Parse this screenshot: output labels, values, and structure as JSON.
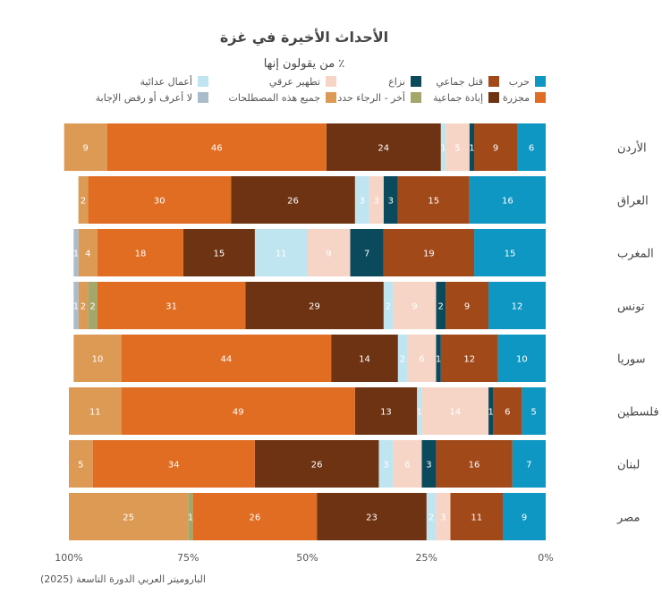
{
  "chart_data": {
    "type": "bar",
    "orientation": "horizontal-stacked-100",
    "direction": "rtl",
    "title": "الأحداث الأخيرة في غزة",
    "subtitle": "٪ من يقولون إنها",
    "source": "الباروميتر العربي الدورة التاسعة (2025)",
    "x_ticks": [
      {
        "value": 100,
        "label": "100%"
      },
      {
        "value": 75,
        "label": "75%"
      },
      {
        "value": 50,
        "label": "50%"
      },
      {
        "value": 25,
        "label": "25%"
      },
      {
        "value": 0,
        "label": "0%"
      }
    ],
    "categories": [
      "الأردن",
      "العراق",
      "المغرب",
      "تونس",
      "سوريا",
      "فلسطين",
      "لبنان",
      "مصر"
    ],
    "series": [
      {
        "key": "war",
        "name": "حرب",
        "color": "#0e97c3",
        "text_color": "#ffffff",
        "values": [
          6,
          16,
          15,
          12,
          10,
          5,
          7,
          9
        ]
      },
      {
        "key": "massacre",
        "name": "قتل جماعي",
        "color": "#a2491a",
        "text_color": "#ffffff",
        "values": [
          9,
          15,
          19,
          9,
          12,
          6,
          16,
          11
        ]
      },
      {
        "key": "conflict",
        "name": "نزاع",
        "color": "#0a4a5c",
        "text_color": "#ffffff",
        "values": [
          1,
          3,
          7,
          2,
          1,
          1,
          3,
          0
        ]
      },
      {
        "key": "ethnic",
        "name": "تطهير عرقي",
        "color": "#f7d5c6",
        "text_color": "#ffffff",
        "values": [
          5,
          3,
          9,
          9,
          6,
          14,
          6,
          3
        ]
      },
      {
        "key": "justice",
        "name": "أعمال عدائية",
        "color": "#bfe5f1",
        "text_color": "#ffffff",
        "values": [
          1,
          3,
          11,
          2,
          2,
          1,
          3,
          2
        ]
      },
      {
        "key": "genocide",
        "name": "إبادة جماعية",
        "color": "#6e3312",
        "text_color": "#ffffff",
        "values": [
          24,
          26,
          15,
          29,
          14,
          13,
          26,
          23
        ]
      },
      {
        "key": "carnage",
        "name": "مجزرة",
        "color": "#e06d22",
        "text_color": "#ffffff",
        "values": [
          46,
          30,
          18,
          31,
          44,
          49,
          34,
          26
        ]
      },
      {
        "key": "other",
        "name": "أخر",
        "color": "#a5a76a",
        "text_color": "#ffffff",
        "values": [
          0,
          0,
          0,
          2,
          0,
          0,
          0,
          1
        ]
      },
      {
        "key": "all",
        "name": "جميع هذه المصطلحات",
        "color": "#dc9a55",
        "text_color": "#ffffff",
        "values": [
          9,
          2,
          4,
          2,
          10,
          11,
          5,
          25
        ]
      },
      {
        "key": "dk",
        "name": "لا أعرف أو رفض الإجابة",
        "color": "#a9bccb",
        "text_color": "#ffffff",
        "values": [
          0,
          0,
          1,
          1,
          0,
          0,
          0,
          0
        ]
      }
    ],
    "legend": [
      [
        "war",
        "massacre",
        "conflict",
        "ethnic",
        "justice"
      ],
      [
        "carnage",
        "genocide",
        "other",
        "all",
        "dk"
      ]
    ],
    "legend_texts": {
      "war": "حرب",
      "massacre": "قتل جماعي",
      "conflict": "نزاع",
      "ethnic": "تطهير عرقي",
      "justice": "أعمال عدائية",
      "carnage": "مجزرة",
      "genocide": "إبادة جماعية",
      "other": "أخر - الرجاء حدد",
      "all": "جميع هذه المصطلحات",
      "dk": "لا أعرف أو رفض الإجابة"
    }
  }
}
